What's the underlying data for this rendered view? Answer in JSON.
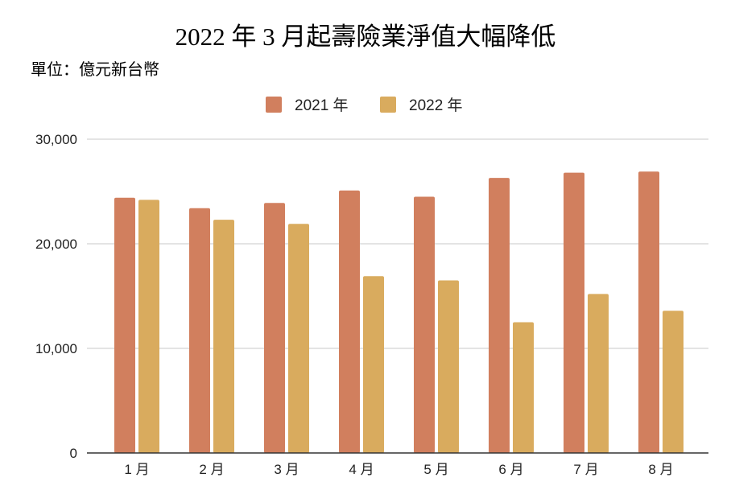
{
  "chart_data": {
    "type": "bar",
    "title": "2022 年 3 月起壽險業淨值大幅降低",
    "subtitle": "單位：億元新台幣",
    "categories": [
      "1 月",
      "2 月",
      "3 月",
      "4 月",
      "5 月",
      "6 月",
      "7 月",
      "8 月"
    ],
    "series": [
      {
        "name": "2021 年",
        "color": "#d17f5e",
        "values": [
          24400,
          23400,
          23900,
          25100,
          24500,
          26300,
          26800,
          26900
        ]
      },
      {
        "name": "2022 年",
        "color": "#d9ab5e",
        "values": [
          24200,
          22300,
          21900,
          16900,
          16500,
          12500,
          15200,
          13600
        ]
      }
    ],
    "ylim": [
      0,
      30000
    ],
    "yticks": [
      0,
      10000,
      20000,
      30000
    ],
    "ytick_labels": [
      "0",
      "10,000",
      "20,000",
      "30,000"
    ],
    "grid": true,
    "legend_position": "top"
  }
}
